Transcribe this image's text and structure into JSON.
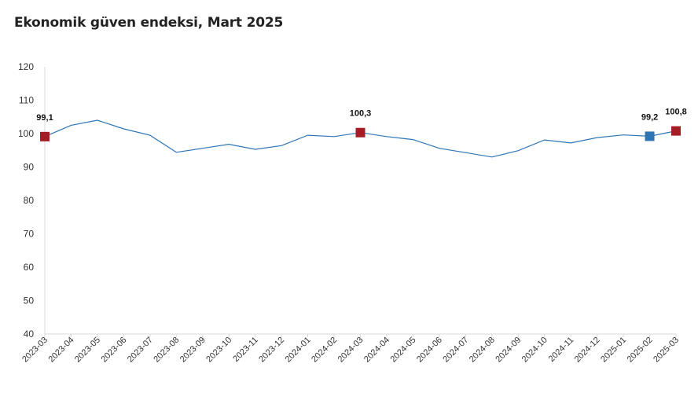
{
  "chart_data": {
    "type": "line",
    "title": "Ekonomik güven endeksi, Mart 2025",
    "xlabel": "",
    "ylabel": "",
    "ylim": [
      40,
      120
    ],
    "yticks": [
      "40",
      "50",
      "60",
      "70",
      "80",
      "90",
      "100",
      "110",
      "120"
    ],
    "grid": false,
    "categories": [
      "2023-03",
      "2023-04",
      "2023-05",
      "2023-06",
      "2023-07",
      "2023-08",
      "2023-09",
      "2023-10",
      "2023-11",
      "2023-12",
      "2024-01",
      "2024-02",
      "2024-03",
      "2024-04",
      "2024-05",
      "2024-06",
      "2024-07",
      "2024-08",
      "2024-09",
      "2024-10",
      "2024-11",
      "2024-12",
      "2025-01",
      "2025-02",
      "2025-03"
    ],
    "series": [
      {
        "values": [
          99.1,
          102.5,
          104.0,
          101.4,
          99.5,
          94.4,
          95.6,
          96.8,
          95.3,
          96.4,
          99.5,
          99.1,
          100.3,
          99.1,
          98.2,
          95.6,
          94.3,
          93.0,
          94.9,
          98.1,
          97.2,
          98.8,
          99.6,
          99.2,
          100.8
        ],
        "color": "#2e75b6"
      }
    ],
    "highlighted_points": [
      {
        "index": 0,
        "label": "99,1",
        "color": "#a51c24"
      },
      {
        "index": 12,
        "label": "100,3",
        "color": "#a51c24"
      },
      {
        "index": 23,
        "label": "99,2",
        "color": "#2e75b6"
      },
      {
        "index": 24,
        "label": "100,8",
        "color": "#a51c24"
      }
    ]
  }
}
